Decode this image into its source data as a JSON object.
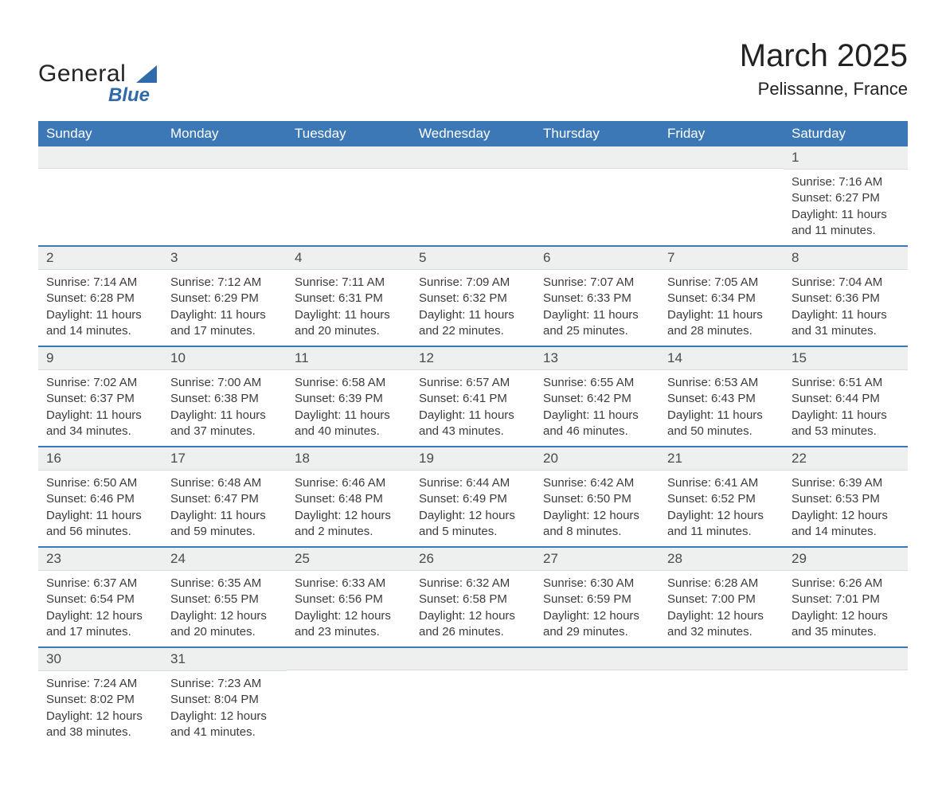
{
  "logo": {
    "line1": "General",
    "line2": "Blue"
  },
  "title": "March 2025",
  "subtitle": "Pelissanne, France",
  "colors": {
    "header_bg": "#3d78b6",
    "header_fg": "#ffffff",
    "daynum_bg": "#eef0f0",
    "text": "#3c3c3c",
    "logo_blue": "#2f6aab",
    "row_divider": "#3d78b6"
  },
  "typography": {
    "title_fontsize": 40,
    "subtitle_fontsize": 22,
    "header_fontsize": 17,
    "daynum_fontsize": 17,
    "body_fontsize": 15
  },
  "weekdays": [
    "Sunday",
    "Monday",
    "Tuesday",
    "Wednesday",
    "Thursday",
    "Friday",
    "Saturday"
  ],
  "weeks": [
    [
      {
        "blank": true
      },
      {
        "blank": true
      },
      {
        "blank": true
      },
      {
        "blank": true
      },
      {
        "blank": true
      },
      {
        "blank": true
      },
      {
        "n": "1",
        "sunrise": "Sunrise: 7:16 AM",
        "sunset": "Sunset: 6:27 PM",
        "dl1": "Daylight: 11 hours",
        "dl2": "and 11 minutes."
      }
    ],
    [
      {
        "n": "2",
        "sunrise": "Sunrise: 7:14 AM",
        "sunset": "Sunset: 6:28 PM",
        "dl1": "Daylight: 11 hours",
        "dl2": "and 14 minutes."
      },
      {
        "n": "3",
        "sunrise": "Sunrise: 7:12 AM",
        "sunset": "Sunset: 6:29 PM",
        "dl1": "Daylight: 11 hours",
        "dl2": "and 17 minutes."
      },
      {
        "n": "4",
        "sunrise": "Sunrise: 7:11 AM",
        "sunset": "Sunset: 6:31 PM",
        "dl1": "Daylight: 11 hours",
        "dl2": "and 20 minutes."
      },
      {
        "n": "5",
        "sunrise": "Sunrise: 7:09 AM",
        "sunset": "Sunset: 6:32 PM",
        "dl1": "Daylight: 11 hours",
        "dl2": "and 22 minutes."
      },
      {
        "n": "6",
        "sunrise": "Sunrise: 7:07 AM",
        "sunset": "Sunset: 6:33 PM",
        "dl1": "Daylight: 11 hours",
        "dl2": "and 25 minutes."
      },
      {
        "n": "7",
        "sunrise": "Sunrise: 7:05 AM",
        "sunset": "Sunset: 6:34 PM",
        "dl1": "Daylight: 11 hours",
        "dl2": "and 28 minutes."
      },
      {
        "n": "8",
        "sunrise": "Sunrise: 7:04 AM",
        "sunset": "Sunset: 6:36 PM",
        "dl1": "Daylight: 11 hours",
        "dl2": "and 31 minutes."
      }
    ],
    [
      {
        "n": "9",
        "sunrise": "Sunrise: 7:02 AM",
        "sunset": "Sunset: 6:37 PM",
        "dl1": "Daylight: 11 hours",
        "dl2": "and 34 minutes."
      },
      {
        "n": "10",
        "sunrise": "Sunrise: 7:00 AM",
        "sunset": "Sunset: 6:38 PM",
        "dl1": "Daylight: 11 hours",
        "dl2": "and 37 minutes."
      },
      {
        "n": "11",
        "sunrise": "Sunrise: 6:58 AM",
        "sunset": "Sunset: 6:39 PM",
        "dl1": "Daylight: 11 hours",
        "dl2": "and 40 minutes."
      },
      {
        "n": "12",
        "sunrise": "Sunrise: 6:57 AM",
        "sunset": "Sunset: 6:41 PM",
        "dl1": "Daylight: 11 hours",
        "dl2": "and 43 minutes."
      },
      {
        "n": "13",
        "sunrise": "Sunrise: 6:55 AM",
        "sunset": "Sunset: 6:42 PM",
        "dl1": "Daylight: 11 hours",
        "dl2": "and 46 minutes."
      },
      {
        "n": "14",
        "sunrise": "Sunrise: 6:53 AM",
        "sunset": "Sunset: 6:43 PM",
        "dl1": "Daylight: 11 hours",
        "dl2": "and 50 minutes."
      },
      {
        "n": "15",
        "sunrise": "Sunrise: 6:51 AM",
        "sunset": "Sunset: 6:44 PM",
        "dl1": "Daylight: 11 hours",
        "dl2": "and 53 minutes."
      }
    ],
    [
      {
        "n": "16",
        "sunrise": "Sunrise: 6:50 AM",
        "sunset": "Sunset: 6:46 PM",
        "dl1": "Daylight: 11 hours",
        "dl2": "and 56 minutes."
      },
      {
        "n": "17",
        "sunrise": "Sunrise: 6:48 AM",
        "sunset": "Sunset: 6:47 PM",
        "dl1": "Daylight: 11 hours",
        "dl2": "and 59 minutes."
      },
      {
        "n": "18",
        "sunrise": "Sunrise: 6:46 AM",
        "sunset": "Sunset: 6:48 PM",
        "dl1": "Daylight: 12 hours",
        "dl2": "and 2 minutes."
      },
      {
        "n": "19",
        "sunrise": "Sunrise: 6:44 AM",
        "sunset": "Sunset: 6:49 PM",
        "dl1": "Daylight: 12 hours",
        "dl2": "and 5 minutes."
      },
      {
        "n": "20",
        "sunrise": "Sunrise: 6:42 AM",
        "sunset": "Sunset: 6:50 PM",
        "dl1": "Daylight: 12 hours",
        "dl2": "and 8 minutes."
      },
      {
        "n": "21",
        "sunrise": "Sunrise: 6:41 AM",
        "sunset": "Sunset: 6:52 PM",
        "dl1": "Daylight: 12 hours",
        "dl2": "and 11 minutes."
      },
      {
        "n": "22",
        "sunrise": "Sunrise: 6:39 AM",
        "sunset": "Sunset: 6:53 PM",
        "dl1": "Daylight: 12 hours",
        "dl2": "and 14 minutes."
      }
    ],
    [
      {
        "n": "23",
        "sunrise": "Sunrise: 6:37 AM",
        "sunset": "Sunset: 6:54 PM",
        "dl1": "Daylight: 12 hours",
        "dl2": "and 17 minutes."
      },
      {
        "n": "24",
        "sunrise": "Sunrise: 6:35 AM",
        "sunset": "Sunset: 6:55 PM",
        "dl1": "Daylight: 12 hours",
        "dl2": "and 20 minutes."
      },
      {
        "n": "25",
        "sunrise": "Sunrise: 6:33 AM",
        "sunset": "Sunset: 6:56 PM",
        "dl1": "Daylight: 12 hours",
        "dl2": "and 23 minutes."
      },
      {
        "n": "26",
        "sunrise": "Sunrise: 6:32 AM",
        "sunset": "Sunset: 6:58 PM",
        "dl1": "Daylight: 12 hours",
        "dl2": "and 26 minutes."
      },
      {
        "n": "27",
        "sunrise": "Sunrise: 6:30 AM",
        "sunset": "Sunset: 6:59 PM",
        "dl1": "Daylight: 12 hours",
        "dl2": "and 29 minutes."
      },
      {
        "n": "28",
        "sunrise": "Sunrise: 6:28 AM",
        "sunset": "Sunset: 7:00 PM",
        "dl1": "Daylight: 12 hours",
        "dl2": "and 32 minutes."
      },
      {
        "n": "29",
        "sunrise": "Sunrise: 6:26 AM",
        "sunset": "Sunset: 7:01 PM",
        "dl1": "Daylight: 12 hours",
        "dl2": "and 35 minutes."
      }
    ],
    [
      {
        "n": "30",
        "sunrise": "Sunrise: 7:24 AM",
        "sunset": "Sunset: 8:02 PM",
        "dl1": "Daylight: 12 hours",
        "dl2": "and 38 minutes."
      },
      {
        "n": "31",
        "sunrise": "Sunrise: 7:23 AM",
        "sunset": "Sunset: 8:04 PM",
        "dl1": "Daylight: 12 hours",
        "dl2": "and 41 minutes."
      },
      {
        "blank": true
      },
      {
        "blank": true
      },
      {
        "blank": true
      },
      {
        "blank": true
      },
      {
        "blank": true
      }
    ]
  ]
}
